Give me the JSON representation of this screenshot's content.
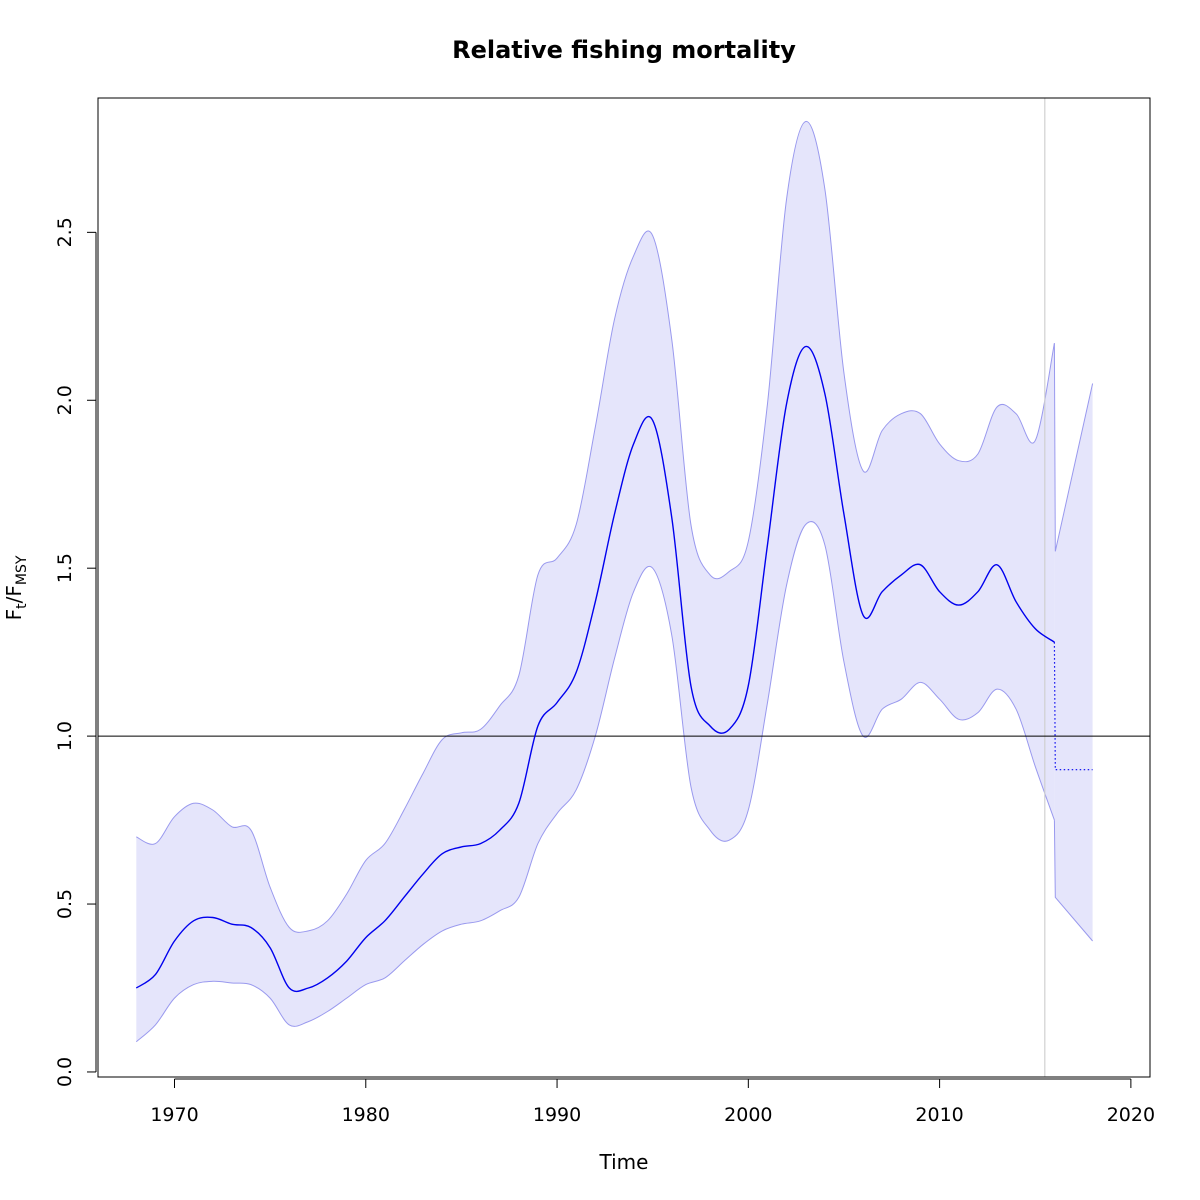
{
  "chart_data": {
    "type": "line",
    "title": "Relative fishing mortality",
    "xlabel": "Time",
    "ylabel": {
      "main": "F",
      "sub1": "t",
      "slash": "/F",
      "sub2": "MSY"
    },
    "xlim": [
      1966,
      2021
    ],
    "ylim": [
      -0.015,
      2.9
    ],
    "xticks": [
      1970,
      1980,
      1990,
      2000,
      2010,
      2020
    ],
    "yticks": [
      0.0,
      0.5,
      1.0,
      1.5,
      2.0,
      2.5
    ],
    "xtick_labels": [
      "1970",
      "1980",
      "1990",
      "2000",
      "2010",
      "2020"
    ],
    "ytick_labels": [
      "0.0",
      "0.5",
      "1.0",
      "1.5",
      "2.0",
      "2.5"
    ],
    "reference_line": {
      "y": 1.0,
      "color": "#000000"
    },
    "vertical_line": {
      "x": 2015.5,
      "color": "#d0d0d0"
    },
    "series": [
      {
        "name": "estimate",
        "color": "#0000ee",
        "x": [
          1968,
          1969,
          1970,
          1971,
          1972,
          1973,
          1974,
          1975,
          1976,
          1977,
          1978,
          1979,
          1980,
          1981,
          1982,
          1983,
          1984,
          1985,
          1986,
          1987,
          1988,
          1989,
          1990,
          1991,
          1992,
          1993,
          1994,
          1995,
          1996,
          1997,
          1998,
          1999,
          2000,
          2001,
          2002,
          2003,
          2004,
          2005,
          2006,
          2007,
          2008,
          2009,
          2010,
          2011,
          2012,
          2013,
          2014,
          2015,
          2016
        ],
        "y": [
          0.25,
          0.29,
          0.39,
          0.45,
          0.46,
          0.44,
          0.43,
          0.37,
          0.25,
          0.25,
          0.28,
          0.33,
          0.4,
          0.45,
          0.52,
          0.59,
          0.65,
          0.67,
          0.68,
          0.72,
          0.8,
          1.03,
          1.1,
          1.19,
          1.4,
          1.66,
          1.87,
          1.94,
          1.65,
          1.15,
          1.03,
          1.02,
          1.15,
          1.57,
          1.99,
          2.16,
          2.02,
          1.66,
          1.36,
          1.43,
          1.48,
          1.51,
          1.43,
          1.39,
          1.43,
          1.51,
          1.4,
          1.32,
          1.28
        ]
      },
      {
        "name": "upper",
        "color": "#9999ee",
        "x": [
          1968,
          1969,
          1970,
          1971,
          1972,
          1973,
          1974,
          1975,
          1976,
          1977,
          1978,
          1979,
          1980,
          1981,
          1982,
          1983,
          1984,
          1985,
          1986,
          1987,
          1988,
          1989,
          1990,
          1991,
          1992,
          1993,
          1994,
          1995,
          1996,
          1997,
          1998,
          1999,
          2000,
          2001,
          2002,
          2003,
          2004,
          2005,
          2006,
          2007,
          2008,
          2009,
          2010,
          2011,
          2012,
          2013,
          2014,
          2015,
          2016
        ],
        "y": [
          0.7,
          0.68,
          0.76,
          0.8,
          0.78,
          0.73,
          0.72,
          0.55,
          0.43,
          0.42,
          0.45,
          0.53,
          0.63,
          0.68,
          0.78,
          0.89,
          0.99,
          1.01,
          1.02,
          1.09,
          1.18,
          1.48,
          1.53,
          1.63,
          1.92,
          2.24,
          2.43,
          2.49,
          2.18,
          1.63,
          1.48,
          1.49,
          1.58,
          1.99,
          2.6,
          2.83,
          2.63,
          2.08,
          1.79,
          1.91,
          1.96,
          1.96,
          1.87,
          1.82,
          1.84,
          1.98,
          1.96,
          1.88,
          2.17
        ]
      },
      {
        "name": "lower",
        "color": "#9999ee",
        "x": [
          1968,
          1969,
          1970,
          1971,
          1972,
          1973,
          1974,
          1975,
          1976,
          1977,
          1978,
          1979,
          1980,
          1981,
          1982,
          1983,
          1984,
          1985,
          1986,
          1987,
          1988,
          1989,
          1990,
          1991,
          1992,
          1993,
          1994,
          1995,
          1996,
          1997,
          1998,
          1999,
          2000,
          2001,
          2002,
          2003,
          2004,
          2005,
          2006,
          2007,
          2008,
          2009,
          2010,
          2011,
          2012,
          2013,
          2014,
          2015,
          2016
        ],
        "y": [
          0.09,
          0.14,
          0.22,
          0.26,
          0.27,
          0.265,
          0.26,
          0.22,
          0.14,
          0.15,
          0.18,
          0.22,
          0.26,
          0.28,
          0.33,
          0.38,
          0.42,
          0.44,
          0.45,
          0.48,
          0.52,
          0.68,
          0.77,
          0.84,
          1.0,
          1.23,
          1.43,
          1.5,
          1.3,
          0.85,
          0.72,
          0.69,
          0.78,
          1.1,
          1.45,
          1.63,
          1.57,
          1.22,
          1.0,
          1.08,
          1.11,
          1.16,
          1.11,
          1.05,
          1.07,
          1.14,
          1.08,
          0.91,
          0.75
        ]
      },
      {
        "name": "forecast",
        "color": "#0000ee",
        "style": "dotted",
        "x": [
          2016,
          2016.05,
          2018
        ],
        "y": [
          1.28,
          0.9,
          0.9
        ]
      },
      {
        "name": "forecast-upper",
        "color": "#9999ee",
        "x": [
          2016,
          2016.05,
          2018
        ],
        "y": [
          2.17,
          1.55,
          2.05
        ]
      },
      {
        "name": "forecast-lower",
        "color": "#9999ee",
        "x": [
          2016,
          2016.05,
          2018
        ],
        "y": [
          0.75,
          0.52,
          0.39
        ]
      }
    ],
    "band_fill": "#e5e5fb",
    "grid": false
  }
}
